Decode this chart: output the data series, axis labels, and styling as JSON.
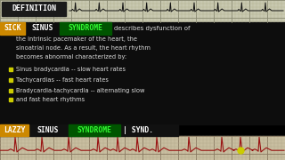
{
  "bg_color": "#000000",
  "ekg_top_bg": "#c8c8b0",
  "ekg_top_grid_minor": "#b0b090",
  "ekg_top_grid_major": "#888870",
  "ekg_top_line": "#111111",
  "ekg_bot_bg": "#c8bea0",
  "ekg_bot_grid_minor": "#b0a888",
  "ekg_bot_grid_major": "#887860",
  "ekg_bot_line": "#991111",
  "def_box_bg": "#1a1a1a",
  "def_text": "#ffffff",
  "text_area_bg": "#0d0d0d",
  "sick_bg": "#cc8800",
  "sick_text": "#ffffff",
  "sinus_text": "#ffffff",
  "syndrome_bg": "#005500",
  "syndrome_text": "#33ff33",
  "body_text": "#dddddd",
  "bullet_color": "#cccc00",
  "lazzy_bg": "#cc8800",
  "lazzy_text": "#ffffff",
  "bottom_bar_bg": "#111111",
  "synd_text": "#ffffff",
  "cursor_color": "#cccc00",
  "definition_label": "DEFINITION",
  "body_suffix": "describes dysfunction of",
  "body_lines": [
    "the intrinsic pacemaker of the heart, the",
    "sinoatrial node. As a result, the heart rhythm",
    "becomes abnormal characterized by:"
  ],
  "bullet_lines": [
    "Sinus bradycardia -- slow heart rates",
    "Tachycardias -- fast heart rates",
    "Bradycardia-tachycardia -- alternating slow",
    "and fast heart rhythms"
  ]
}
